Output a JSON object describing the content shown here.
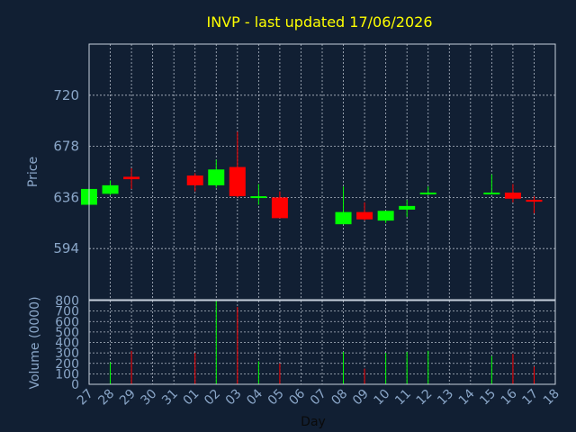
{
  "chart_data": [
    {
      "type": "candlestick",
      "title": "INVP - last updated 17/06/2026",
      "xlabel": "Day",
      "ylabel": "Price",
      "categories": [
        "27",
        "28",
        "29",
        "30",
        "31",
        "01",
        "02",
        "03",
        "04",
        "05",
        "06",
        "07",
        "08",
        "09",
        "10",
        "11",
        "12",
        "13",
        "14",
        "15",
        "16",
        "17",
        "18"
      ],
      "ylim": [
        552,
        762
      ],
      "yticks": [
        594,
        636,
        678,
        720
      ],
      "grid": true,
      "colors": {
        "up": "#00ff00",
        "down": "#ff0000",
        "background": "#111f33",
        "title": "#ffff00",
        "axis_text": "#8aa6c8"
      },
      "candles": [
        {
          "x": "27",
          "open": 630,
          "close": 643,
          "high": 645,
          "low": 628
        },
        {
          "x": "28",
          "open": 639,
          "close": 646,
          "high": 650,
          "low": 638
        },
        {
          "x": "29",
          "open": 653,
          "close": 651,
          "high": 660,
          "low": 643
        },
        {
          "x": "01",
          "open": 654,
          "close": 646,
          "high": 656,
          "low": 641
        },
        {
          "x": "02",
          "open": 646,
          "close": 659,
          "high": 667,
          "low": 644
        },
        {
          "x": "03",
          "open": 661,
          "close": 637,
          "high": 690,
          "low": 636
        },
        {
          "x": "04",
          "open": 636,
          "close": 637,
          "high": 647,
          "low": 630
        },
        {
          "x": "05",
          "open": 636,
          "close": 619,
          "high": 641,
          "low": 619
        },
        {
          "x": "08",
          "open": 614,
          "close": 624,
          "high": 645,
          "low": 614
        },
        {
          "x": "09",
          "open": 624,
          "close": 618,
          "high": 632,
          "low": 617
        },
        {
          "x": "10",
          "open": 617,
          "close": 625,
          "high": 625,
          "low": 615
        },
        {
          "x": "11",
          "open": 626,
          "close": 629,
          "high": 634,
          "low": 620
        },
        {
          "x": "12",
          "open": 639,
          "close": 640,
          "high": 645,
          "low": 638
        },
        {
          "x": "15",
          "open": 639,
          "close": 640,
          "high": 655,
          "low": 639
        },
        {
          "x": "16",
          "open": 640,
          "close": 635,
          "high": 647,
          "low": 632
        },
        {
          "x": "17",
          "open": 634,
          "close": 633,
          "high": 637,
          "low": 623
        }
      ]
    },
    {
      "type": "bar",
      "ylabel": "Volume (0000)",
      "categories": [
        "27",
        "28",
        "29",
        "30",
        "31",
        "01",
        "02",
        "03",
        "04",
        "05",
        "06",
        "07",
        "08",
        "09",
        "10",
        "11",
        "12",
        "13",
        "14",
        "15",
        "16",
        "17",
        "18"
      ],
      "ylim": [
        0,
        800
      ],
      "yticks": [
        0,
        100,
        200,
        300,
        400,
        500,
        600,
        700,
        800
      ],
      "series": [
        {
          "values": [
            {
              "x": "28",
              "value": 210,
              "color": "up"
            },
            {
              "x": "29",
              "value": 320,
              "color": "down"
            },
            {
              "x": "01",
              "value": 300,
              "color": "down"
            },
            {
              "x": "02",
              "value": 800,
              "color": "up"
            },
            {
              "x": "03",
              "value": 740,
              "color": "down"
            },
            {
              "x": "04",
              "value": 220,
              "color": "up"
            },
            {
              "x": "05",
              "value": 200,
              "color": "down"
            },
            {
              "x": "08",
              "value": 310,
              "color": "up"
            },
            {
              "x": "09",
              "value": 150,
              "color": "down"
            },
            {
              "x": "10",
              "value": 300,
              "color": "up"
            },
            {
              "x": "11",
              "value": 310,
              "color": "up"
            },
            {
              "x": "12",
              "value": 320,
              "color": "up"
            },
            {
              "x": "15",
              "value": 270,
              "color": "up"
            },
            {
              "x": "16",
              "value": 290,
              "color": "down"
            },
            {
              "x": "17",
              "value": 170,
              "color": "down"
            }
          ]
        }
      ]
    }
  ]
}
